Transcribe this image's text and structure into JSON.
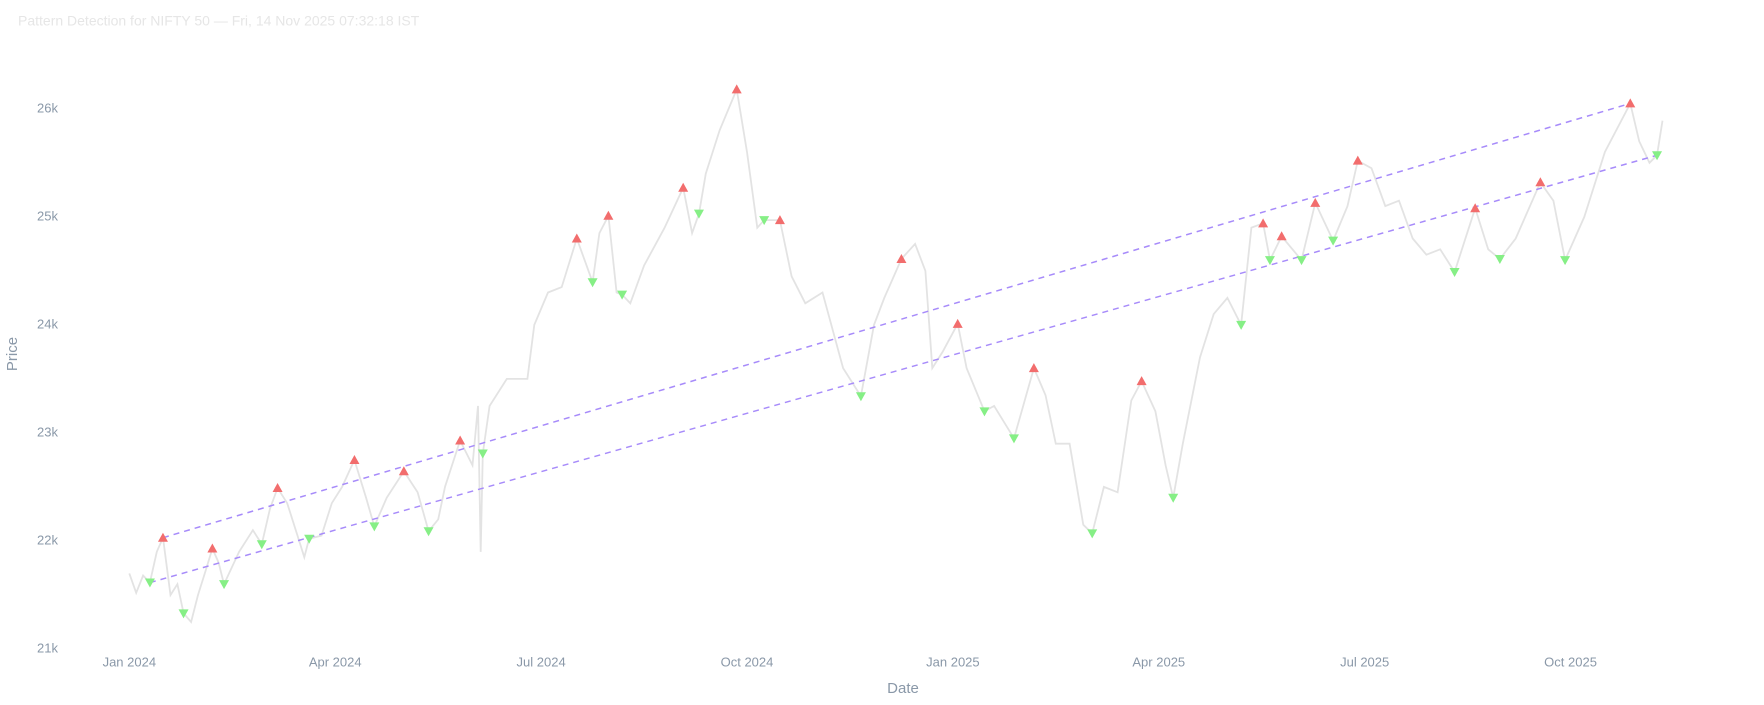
{
  "chart_data": {
    "type": "line",
    "title": "Pattern Detection for NIFTY 50 — Fri, 14 Nov 2025 07:32:18 IST",
    "x_label": "Date",
    "y_label": "Price",
    "xlim": [
      -0.85,
      23.6
    ],
    "ylim": [
      21000,
      26600
    ],
    "xticks": [
      {
        "value": 0,
        "label": "Jan 2024"
      },
      {
        "value": 3,
        "label": "Apr 2024"
      },
      {
        "value": 6,
        "label": "Jul 2024"
      },
      {
        "value": 9,
        "label": "Oct 2024"
      },
      {
        "value": 12,
        "label": "Jan 2025"
      },
      {
        "value": 15,
        "label": "Apr 2025"
      },
      {
        "value": 18,
        "label": "Jul 2025"
      },
      {
        "value": 21,
        "label": "Oct 2025"
      }
    ],
    "yticks": [
      {
        "value": 21000,
        "label": "21k"
      },
      {
        "value": 22000,
        "label": "22k"
      },
      {
        "value": 23000,
        "label": "23k"
      },
      {
        "value": 24000,
        "label": "24k"
      },
      {
        "value": 25000,
        "label": "25k"
      },
      {
        "value": 26000,
        "label": "26k"
      }
    ],
    "grid": false,
    "series": [
      {
        "color": "#e3e3e3",
        "mode": "line",
        "dash": false,
        "x": [
          0.0,
          0.1,
          0.2,
          0.3,
          0.4,
          0.49,
          0.6,
          0.7,
          0.79,
          0.9,
          1.0,
          1.1,
          1.21,
          1.3,
          1.38,
          1.6,
          1.8,
          1.93,
          2.05,
          2.16,
          2.3,
          2.45,
          2.55,
          2.62,
          2.8,
          2.95,
          3.1,
          3.28,
          3.45,
          3.57,
          3.75,
          4.0,
          4.2,
          4.36,
          4.5,
          4.6,
          4.82,
          5.0,
          5.08,
          5.12,
          5.15,
          5.25,
          5.5,
          5.8,
          5.9,
          6.1,
          6.3,
          6.52,
          6.75,
          6.85,
          6.98,
          7.1,
          7.18,
          7.3,
          7.5,
          7.8,
          8.07,
          8.2,
          8.3,
          8.4,
          8.6,
          8.85,
          9.0,
          9.15,
          9.25,
          9.48,
          9.65,
          9.85,
          10.1,
          10.4,
          10.66,
          10.85,
          11.0,
          11.25,
          11.45,
          11.6,
          11.7,
          11.85,
          12.07,
          12.2,
          12.46,
          12.6,
          12.89,
          13.18,
          13.35,
          13.5,
          13.7,
          13.9,
          14.03,
          14.2,
          14.4,
          14.6,
          14.75,
          14.95,
          15.1,
          15.21,
          15.35,
          15.6,
          15.8,
          16.0,
          16.2,
          16.35,
          16.52,
          16.62,
          16.79,
          17.08,
          17.28,
          17.54,
          17.75,
          17.9,
          18.1,
          18.3,
          18.5,
          18.7,
          18.9,
          19.1,
          19.31,
          19.61,
          19.8,
          19.97,
          20.2,
          20.56,
          20.75,
          20.92,
          21.2,
          21.5,
          21.87,
          22.0,
          22.15,
          22.26,
          22.34
        ],
        "values": [
          21700,
          21520,
          21680,
          21615,
          21900,
          22030,
          21500,
          21600,
          21330,
          21250,
          21500,
          21700,
          21930,
          21800,
          21600,
          21900,
          22100,
          21970,
          22300,
          22490,
          22350,
          22050,
          21850,
          22020,
          22050,
          22350,
          22500,
          22750,
          22400,
          22135,
          22400,
          22645,
          22450,
          22090,
          22200,
          22500,
          22930,
          22700,
          23250,
          21900,
          22810,
          23250,
          23500,
          23500,
          24000,
          24300,
          24350,
          24800,
          24395,
          24850,
          25010,
          24300,
          24280,
          24200,
          24550,
          24900,
          25270,
          24850,
          25030,
          25400,
          25800,
          26180,
          25600,
          24900,
          24970,
          24970,
          24450,
          24200,
          24300,
          23600,
          23340,
          24000,
          24250,
          24610,
          24750,
          24500,
          23600,
          23750,
          24010,
          23600,
          23200,
          23250,
          22950,
          23600,
          23350,
          22900,
          22900,
          22150,
          22070,
          22500,
          22450,
          23300,
          23480,
          23200,
          22700,
          22400,
          22900,
          23700,
          24100,
          24250,
          24000,
          24900,
          24940,
          24600,
          24820,
          24600,
          25130,
          24780,
          25100,
          25520,
          25450,
          25100,
          25150,
          24800,
          24650,
          24700,
          24490,
          25080,
          24700,
          24610,
          24800,
          25320,
          25150,
          24600,
          25000,
          25600,
          26050,
          25700,
          25500,
          25570,
          25890
        ]
      },
      {
        "color": "#a78bfa",
        "mode": "line",
        "dash": true,
        "x": [
          0.49,
          21.87
        ],
        "values": [
          22030,
          26050
        ]
      },
      {
        "color": "#a78bfa",
        "mode": "line",
        "dash": true,
        "x": [
          0.3,
          22.26
        ],
        "values": [
          21615,
          25570
        ]
      },
      {
        "color": "#f26d6d",
        "mode": "markers",
        "marker": "triangle-up",
        "x": [
          0.49,
          1.21,
          2.16,
          3.28,
          4.0,
          4.82,
          6.52,
          6.98,
          8.07,
          8.85,
          9.48,
          11.25,
          12.07,
          13.18,
          14.75,
          16.52,
          16.79,
          17.28,
          17.9,
          19.61,
          20.56,
          21.87
        ],
        "values": [
          22030,
          21930,
          22490,
          22750,
          22645,
          22930,
          24800,
          25010,
          25270,
          26180,
          24970,
          24610,
          24010,
          23600,
          23480,
          24940,
          24820,
          25130,
          25520,
          25080,
          25320,
          26050
        ]
      },
      {
        "color": "#86ef86",
        "mode": "markers",
        "marker": "triangle-down",
        "x": [
          0.3,
          0.79,
          1.38,
          1.93,
          2.62,
          3.57,
          4.36,
          5.15,
          6.75,
          7.18,
          8.3,
          9.25,
          10.66,
          12.46,
          12.89,
          14.03,
          15.21,
          16.2,
          16.62,
          17.08,
          17.54,
          19.31,
          19.97,
          20.92,
          22.26
        ],
        "values": [
          21615,
          21330,
          21600,
          21970,
          22020,
          22135,
          22090,
          22810,
          24395,
          24280,
          25030,
          24970,
          23340,
          23200,
          22950,
          22070,
          22400,
          24000,
          24600,
          24600,
          24780,
          24490,
          24610,
          24600,
          25570
        ]
      }
    ]
  }
}
